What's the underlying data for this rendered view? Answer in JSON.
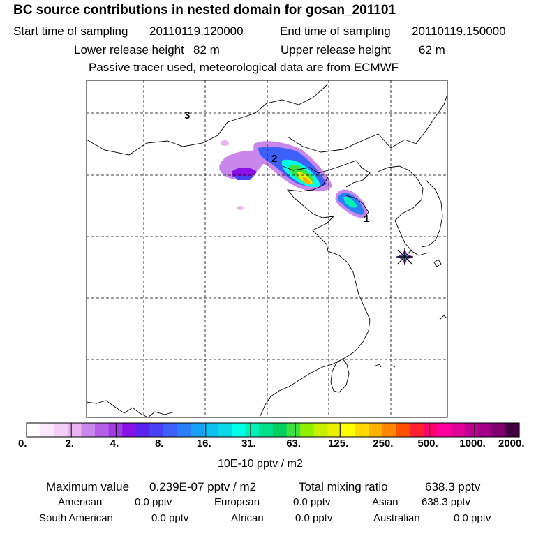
{
  "header": {
    "title": "BC  source contributions in nested domain for gosan_201101",
    "start_label": "Start time of sampling",
    "start_value": "20110119.120000",
    "end_label": "End time of sampling",
    "end_value": "20110119.150000",
    "lower_label": "Lower release height",
    "lower_value": "82 m",
    "upper_label": "Upper release height",
    "upper_value": "62 m",
    "note": "Passive tracer used, meteorological data are from ECMWF"
  },
  "map": {
    "labels": [
      "1",
      "2",
      "3"
    ],
    "receptor_marker": "star-marker-icon"
  },
  "colorbar": {
    "colors": [
      "#ffffff",
      "#fbe9fb",
      "#f4d0f6",
      "#eab3f1",
      "#c987eb",
      "#b45fe6",
      "#a23be6",
      "#8a10e6",
      "#5a22ee",
      "#4a40f6",
      "#3c60f8",
      "#2a7ff8",
      "#1a9ff6",
      "#10bff4",
      "#08d8e8",
      "#00ffe8",
      "#00f0b8",
      "#00e08a",
      "#00d060",
      "#40e040",
      "#90f000",
      "#c8f000",
      "#e8f000",
      "#ffff00",
      "#ffd800",
      "#ffb000",
      "#ff8800",
      "#ff5000",
      "#ff2030",
      "#ff0070",
      "#ff00a0",
      "#e00098",
      "#c00090",
      "#a00088",
      "#800070",
      "#400040"
    ],
    "ticks": [
      "0.",
      "2.",
      "4.",
      "8.",
      "16.",
      "31.",
      "63.",
      "125.",
      "250.",
      "500.",
      "1000.",
      "2000."
    ],
    "unit_label": "10E-10 pptv / m2"
  },
  "summary": {
    "max_label": "Maximum value",
    "max_value": "0.239E-07 pptv / m2",
    "total_label": "Total mixing ratio",
    "total_value": "638.3 pptv",
    "regions": [
      {
        "name": "American",
        "value": "0.0 pptv"
      },
      {
        "name": "European",
        "value": "0.0 pptv"
      },
      {
        "name": "Asian",
        "value": "638.3 pptv"
      },
      {
        "name": "South American",
        "value": "0.0 pptv"
      },
      {
        "name": "African",
        "value": "0.0 pptv"
      },
      {
        "name": "Australian",
        "value": "0.0 pptv"
      }
    ]
  }
}
